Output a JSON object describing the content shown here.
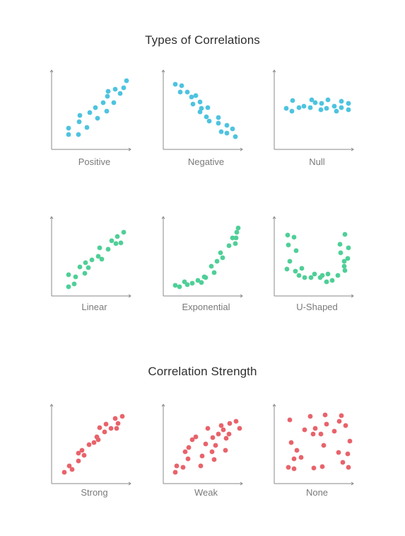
{
  "sections": [
    {
      "title": "Types of Correlations"
    },
    {
      "title": "Correlation Strength"
    }
  ],
  "colors": {
    "blue": "#4ec3e0",
    "green": "#4fcf97",
    "red": "#e8636b",
    "axis": "#8a8a8a"
  },
  "chart_data": [
    {
      "type": "scatter",
      "label": "Positive",
      "color": "#4ec3e0",
      "xlim": [
        0,
        100
      ],
      "ylim": [
        0,
        100
      ],
      "points": [
        [
          16,
          15
        ],
        [
          16,
          24
        ],
        [
          30,
          15
        ],
        [
          31,
          33
        ],
        [
          32,
          42
        ],
        [
          42,
          25
        ],
        [
          46,
          46
        ],
        [
          54,
          53
        ],
        [
          57,
          38
        ],
        [
          65,
          60
        ],
        [
          70,
          48
        ],
        [
          71,
          69
        ],
        [
          72,
          76
        ],
        [
          80,
          60
        ],
        [
          82,
          79
        ],
        [
          89,
          73
        ],
        [
          94,
          81
        ],
        [
          98,
          91
        ]
      ]
    },
    {
      "type": "scatter",
      "label": "Negative",
      "color": "#4ec3e0",
      "xlim": [
        0,
        100
      ],
      "ylim": [
        0,
        100
      ],
      "points": [
        [
          9,
          86
        ],
        [
          18,
          84
        ],
        [
          16,
          75
        ],
        [
          26,
          75
        ],
        [
          32,
          68
        ],
        [
          38,
          70
        ],
        [
          34,
          58
        ],
        [
          44,
          61
        ],
        [
          44,
          47
        ],
        [
          46,
          52
        ],
        [
          53,
          40
        ],
        [
          55,
          53
        ],
        [
          57,
          34
        ],
        [
          70,
          39
        ],
        [
          70,
          31
        ],
        [
          74,
          19
        ],
        [
          82,
          17
        ],
        [
          82,
          28
        ],
        [
          90,
          23
        ],
        [
          94,
          12
        ]
      ]
    },
    {
      "type": "scatter",
      "label": "Null",
      "color": "#4ec3e0",
      "xlim": [
        0,
        100
      ],
      "ylim": [
        0,
        100
      ],
      "points": [
        [
          9,
          52
        ],
        [
          17,
          48
        ],
        [
          18,
          63
        ],
        [
          27,
          53
        ],
        [
          34,
          55
        ],
        [
          43,
          53
        ],
        [
          45,
          64
        ],
        [
          50,
          60
        ],
        [
          58,
          50
        ],
        [
          59,
          59
        ],
        [
          66,
          52
        ],
        [
          68,
          64
        ],
        [
          77,
          55
        ],
        [
          80,
          48
        ],
        [
          87,
          62
        ],
        [
          87,
          53
        ],
        [
          97,
          59
        ],
        [
          97,
          50
        ]
      ]
    },
    {
      "type": "scatter",
      "label": "Linear",
      "color": "#4fcf97",
      "xlim": [
        0,
        100
      ],
      "ylim": [
        0,
        100
      ],
      "points": [
        [
          16,
          7
        ],
        [
          16,
          24
        ],
        [
          24,
          11
        ],
        [
          26,
          21
        ],
        [
          32,
          35
        ],
        [
          39,
          26
        ],
        [
          40,
          41
        ],
        [
          44,
          34
        ],
        [
          49,
          45
        ],
        [
          58,
          50
        ],
        [
          60,
          62
        ],
        [
          63,
          46
        ],
        [
          72,
          60
        ],
        [
          77,
          72
        ],
        [
          83,
          68
        ],
        [
          85,
          78
        ],
        [
          90,
          69
        ],
        [
          94,
          84
        ]
      ]
    },
    {
      "type": "scatter",
      "label": "Exponential",
      "color": "#4fcf97",
      "xlim": [
        0,
        100
      ],
      "ylim": [
        0,
        100
      ],
      "points": [
        [
          9,
          9
        ],
        [
          15,
          7
        ],
        [
          22,
          14
        ],
        [
          26,
          10
        ],
        [
          33,
          12
        ],
        [
          41,
          16
        ],
        [
          46,
          13
        ],
        [
          50,
          21
        ],
        [
          52,
          20
        ],
        [
          60,
          36
        ],
        [
          64,
          27
        ],
        [
          68,
          43
        ],
        [
          73,
          55
        ],
        [
          76,
          48
        ],
        [
          85,
          65
        ],
        [
          94,
          68
        ],
        [
          95,
          76
        ],
        [
          96,
          84
        ],
        [
          90,
          76
        ],
        [
          98,
          90
        ]
      ]
    },
    {
      "type": "scatter",
      "label": "U-Shaped",
      "color": "#4fcf97",
      "xlim": [
        0,
        100
      ],
      "ylim": [
        0,
        100
      ],
      "points": [
        [
          11,
          80
        ],
        [
          12,
          66
        ],
        [
          20,
          77
        ],
        [
          14,
          43
        ],
        [
          23,
          58
        ],
        [
          10,
          32
        ],
        [
          22,
          29
        ],
        [
          27,
          23
        ],
        [
          31,
          33
        ],
        [
          35,
          20
        ],
        [
          44,
          20
        ],
        [
          49,
          25
        ],
        [
          57,
          20
        ],
        [
          60,
          23
        ],
        [
          66,
          14
        ],
        [
          68,
          25
        ],
        [
          74,
          16
        ],
        [
          82,
          23
        ],
        [
          85,
          67
        ],
        [
          86,
          55
        ],
        [
          91,
          43
        ],
        [
          91,
          36
        ],
        [
          96,
          47
        ],
        [
          92,
          30
        ],
        [
          92,
          81
        ],
        [
          97,
          62
        ]
      ]
    },
    {
      "type": "scatter",
      "label": "Strong",
      "color": "#e8636b",
      "xlim": [
        0,
        100
      ],
      "ylim": [
        0,
        100
      ],
      "points": [
        [
          10,
          10
        ],
        [
          17,
          19
        ],
        [
          21,
          14
        ],
        [
          30,
          26
        ],
        [
          30,
          37
        ],
        [
          35,
          41
        ],
        [
          38,
          34
        ],
        [
          45,
          49
        ],
        [
          52,
          52
        ],
        [
          56,
          60
        ],
        [
          58,
          56
        ],
        [
          60,
          73
        ],
        [
          67,
          67
        ],
        [
          69,
          78
        ],
        [
          76,
          72
        ],
        [
          82,
          86
        ],
        [
          84,
          72
        ],
        [
          86,
          79
        ],
        [
          92,
          89
        ]
      ]
    },
    {
      "type": "scatter",
      "label": "Weak",
      "color": "#e8636b",
      "xlim": [
        0,
        100
      ],
      "ylim": [
        0,
        100
      ],
      "points": [
        [
          9,
          10
        ],
        [
          11,
          19
        ],
        [
          20,
          17
        ],
        [
          23,
          39
        ],
        [
          27,
          29
        ],
        [
          28,
          45
        ],
        [
          33,
          56
        ],
        [
          38,
          60
        ],
        [
          45,
          19
        ],
        [
          47,
          33
        ],
        [
          52,
          50
        ],
        [
          55,
          72
        ],
        [
          61,
          39
        ],
        [
          62,
          59
        ],
        [
          64,
          28
        ],
        [
          66,
          48
        ],
        [
          70,
          64
        ],
        [
          74,
          76
        ],
        [
          77,
          70
        ],
        [
          80,
          41
        ],
        [
          81,
          58
        ],
        [
          85,
          64
        ],
        [
          86,
          79
        ],
        [
          95,
          82
        ],
        [
          100,
          72
        ]
      ]
    },
    {
      "type": "scatter",
      "label": "None",
      "color": "#e8636b",
      "xlim": [
        0,
        100
      ],
      "ylim": [
        0,
        100
      ],
      "points": [
        [
          12,
          17
        ],
        [
          14,
          84
        ],
        [
          16,
          52
        ],
        [
          20,
          29
        ],
        [
          20,
          15
        ],
        [
          24,
          41
        ],
        [
          30,
          31
        ],
        [
          35,
          70
        ],
        [
          43,
          89
        ],
        [
          47,
          64
        ],
        [
          48,
          16
        ],
        [
          50,
          72
        ],
        [
          58,
          64
        ],
        [
          60,
          18
        ],
        [
          62,
          48
        ],
        [
          64,
          91
        ],
        [
          66,
          78
        ],
        [
          77,
          68
        ],
        [
          83,
          38
        ],
        [
          84,
          82
        ],
        [
          87,
          90
        ],
        [
          89,
          24
        ],
        [
          93,
          76
        ],
        [
          96,
          36
        ],
        [
          97,
          17
        ],
        [
          99,
          54
        ]
      ]
    }
  ]
}
